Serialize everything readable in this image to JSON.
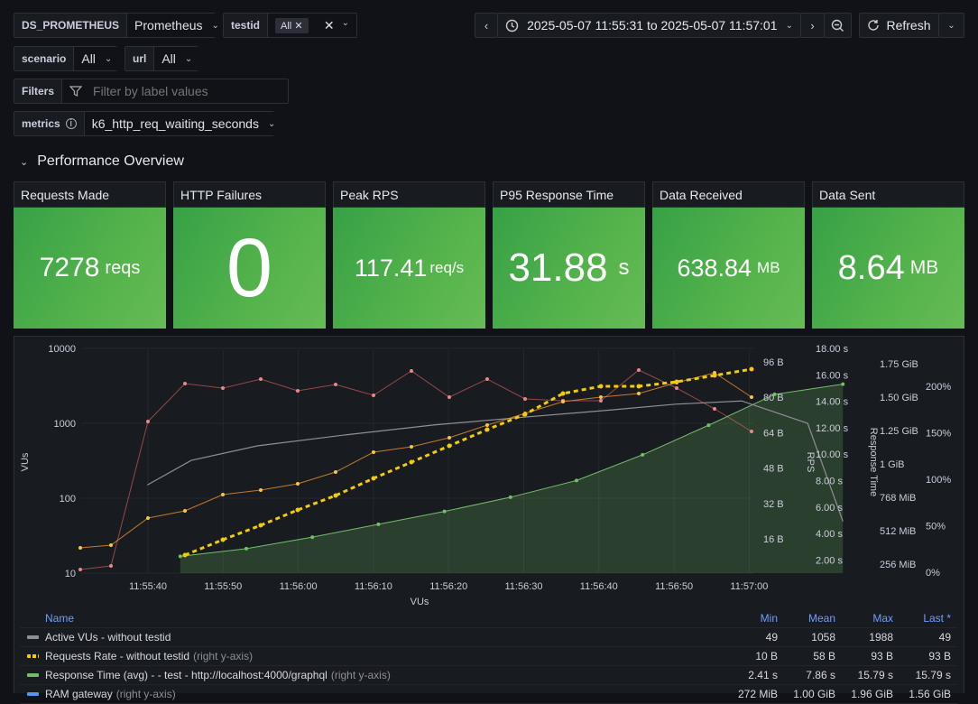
{
  "vars": {
    "ds": {
      "label": "DS_PROMETHEUS",
      "value": "Prometheus"
    },
    "testid": {
      "label": "testid",
      "chip": "All"
    },
    "scenario": {
      "label": "scenario",
      "value": "All"
    },
    "url": {
      "label": "url",
      "value": "All"
    },
    "filters": {
      "label": "Filters",
      "placeholder": "Filter by label values"
    },
    "metrics": {
      "label": "metrics",
      "value": "k6_http_req_waiting_seconds"
    }
  },
  "time": {
    "range": "2025-05-07 11:55:31 to 2025-05-07 11:57:01",
    "refresh": "Refresh"
  },
  "row": {
    "title": "Performance Overview"
  },
  "stats": [
    {
      "title": "Requests Made",
      "value": "7278",
      "unit": "reqs",
      "size": 30
    },
    {
      "title": "HTTP Failures",
      "value": "0",
      "unit": "",
      "size": 92
    },
    {
      "title": "Peak RPS",
      "value": "117.41",
      "unit": "req/s",
      "size": 27
    },
    {
      "title": "P95 Response Time",
      "value": "31.88",
      "unit": "s",
      "size": 44
    },
    {
      "title": "Data Received",
      "value": "638.84",
      "unit": "MB",
      "size": 27
    },
    {
      "title": "Data Sent",
      "value": "8.64",
      "unit": "MB",
      "size": 38
    }
  ],
  "chart_data": {
    "type": "line",
    "xlabel": "VUs",
    "ylabel": "VUs",
    "x_ticks": [
      "11:55:40",
      "11:55:50",
      "11:56:00",
      "11:56:10",
      "11:56:20",
      "11:56:30",
      "11:56:40",
      "11:56:50",
      "11:57:00"
    ],
    "y_left_ticks": [
      "10000",
      "1000",
      "100",
      "10"
    ],
    "y_left_scale": "log",
    "axes_right": [
      {
        "label": "",
        "ticks": [
          "96 B",
          "80 B",
          "64 B",
          "48 B",
          "32 B",
          "16 B"
        ]
      },
      {
        "label": "RPS",
        "ticks": [
          "18.00 s",
          "16.00 s",
          "14.00 s",
          "12.00 s",
          "10.00 s",
          "8.00 s",
          "6.00 s",
          "4.00 s",
          "2.00 s"
        ]
      },
      {
        "label": "Response Time",
        "ticks": [
          "1.75 GiB",
          "1.50 GiB",
          "1.25 GiB",
          "1 GiB",
          "768 MiB",
          "512 MiB",
          "256 MiB"
        ]
      },
      {
        "label": "",
        "ticks": [
          "200%",
          "150%",
          "100%",
          "50%",
          "0%"
        ]
      }
    ],
    "series": [
      {
        "name": "Active VUs - without testid",
        "color": "#8f8f95",
        "x": [
          3,
          5,
          8,
          12,
          16,
          20,
          24,
          27,
          30,
          33,
          34.6
        ],
        "y": [
          150,
          320,
          500,
          700,
          950,
          1200,
          1500,
          1800,
          1988,
          1000,
          49
        ]
      },
      {
        "name": "Requests Rate - without testid",
        "color": "#f2cc0c",
        "x": [
          4.5,
          34.6
        ],
        "y": [
          10,
          93
        ]
      },
      {
        "name": "Response Time (avg) - - test - http://localhost:4000/graphql",
        "color": "#73bf69",
        "x": [
          4.5,
          7.5,
          10.5,
          13.5,
          16.5,
          19.5,
          22.5,
          25.5,
          28.5,
          31.5,
          34.6
        ],
        "y": [
          2.41,
          3.0,
          3.9,
          4.9,
          5.9,
          7.0,
          8.3,
          10.3,
          12.6,
          15.0,
          15.79
        ]
      }
    ],
    "legend": {
      "columns": [
        "Name",
        "Min",
        "Mean",
        "Max",
        "Last *"
      ],
      "rows": [
        {
          "name": "Active VUs - without testid",
          "suffix": "",
          "color": "#8f8f95",
          "style": "solid",
          "min": "49",
          "mean": "1058",
          "max": "1988",
          "last": "49"
        },
        {
          "name": "Requests Rate - without testid",
          "suffix": "(right y-axis)",
          "color": "#f2cc0c",
          "style": "dashed",
          "min": "10 B",
          "mean": "58 B",
          "max": "93 B",
          "last": "93 B"
        },
        {
          "name": "Response Time (avg) - - test - http://localhost:4000/graphql",
          "suffix": "(right y-axis)",
          "color": "#73bf69",
          "style": "solid",
          "min": "2.41 s",
          "mean": "7.86 s",
          "max": "15.79 s",
          "last": "15.79 s"
        },
        {
          "name": "RAM gateway",
          "suffix": "(right y-axis)",
          "color": "#5794f2",
          "style": "solid",
          "min": "272 MiB",
          "mean": "1.00 GiB",
          "max": "1.96 GiB",
          "last": "1.56 GiB"
        }
      ]
    }
  }
}
